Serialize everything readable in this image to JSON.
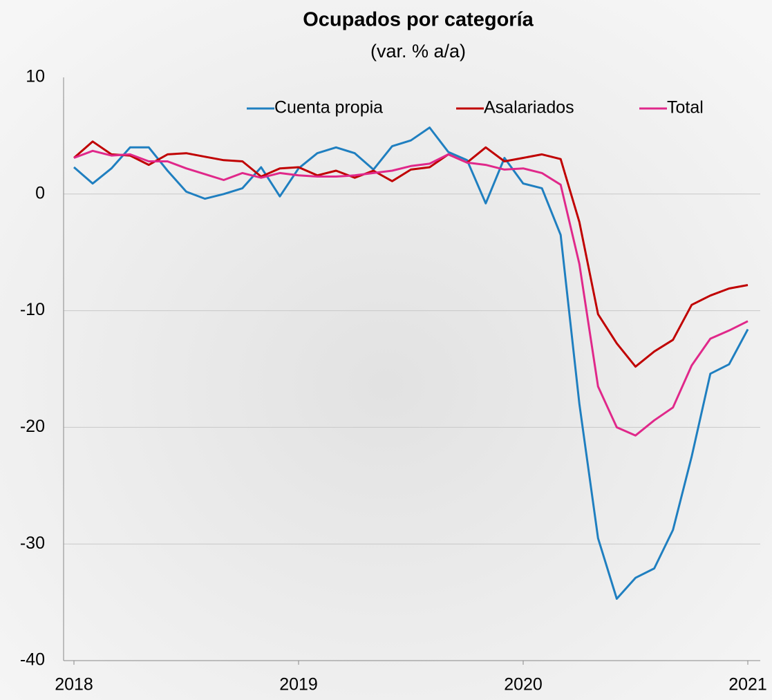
{
  "chart_data": {
    "type": "line",
    "title": "Ocupados por categoría",
    "subtitle": "(var. % a/a)",
    "x": [
      2018,
      2018.0833,
      2018.1667,
      2018.25,
      2018.3333,
      2018.4167,
      2018.5,
      2018.5833,
      2018.6667,
      2018.75,
      2018.8333,
      2018.9167,
      2019,
      2019.0833,
      2019.1667,
      2019.25,
      2019.3333,
      2019.4167,
      2019.5,
      2019.5833,
      2019.6667,
      2019.75,
      2019.8333,
      2019.9167,
      2020,
      2020.0833,
      2020.1667,
      2020.25,
      2020.3333,
      2020.4167,
      2020.5,
      2020.5833,
      2020.6667,
      2020.75,
      2020.8333,
      2020.9167,
      2021
    ],
    "series": [
      {
        "name": "Cuenta propia",
        "color": "#1f7fc0",
        "values": [
          2.3,
          0.9,
          2.2,
          4.0,
          4.0,
          2.0,
          0.2,
          -0.4,
          0.0,
          0.5,
          2.3,
          -0.2,
          2.2,
          3.5,
          4.0,
          3.5,
          2.1,
          4.1,
          4.6,
          5.7,
          3.6,
          2.9,
          -0.8,
          3.1,
          0.9,
          0.5,
          -3.5,
          -18.0,
          -29.5,
          -34.7,
          -32.9,
          -32.1,
          -28.8,
          -22.5,
          -15.4,
          -14.6,
          -11.6
        ]
      },
      {
        "name": "Asalariados",
        "color": "#c00000",
        "values": [
          3.1,
          4.5,
          3.4,
          3.3,
          2.5,
          3.4,
          3.5,
          3.2,
          2.9,
          2.8,
          1.5,
          2.2,
          2.3,
          1.6,
          2.0,
          1.4,
          2.0,
          1.1,
          2.1,
          2.3,
          3.4,
          2.7,
          4.0,
          2.8,
          3.1,
          3.4,
          3.0,
          -2.4,
          -10.3,
          -12.8,
          -14.8,
          -13.5,
          -12.5,
          -9.5,
          -8.7,
          -8.1,
          -7.8
        ]
      },
      {
        "name": "Total",
        "color": "#e0288a",
        "values": [
          3.1,
          3.7,
          3.3,
          3.4,
          2.8,
          2.8,
          2.2,
          1.7,
          1.2,
          1.8,
          1.4,
          1.8,
          1.6,
          1.5,
          1.5,
          1.6,
          1.8,
          2.0,
          2.4,
          2.6,
          3.4,
          2.7,
          2.5,
          2.1,
          2.2,
          1.8,
          0.8,
          -6.0,
          -16.5,
          -20.0,
          -20.7,
          -19.4,
          -18.3,
          -14.7,
          -12.4,
          -11.7,
          -10.9
        ]
      }
    ],
    "xlim": [
      2018,
      2021
    ],
    "xticks": [
      2018,
      2019,
      2020,
      2021
    ],
    "ylim": [
      -40,
      10
    ],
    "yticks": [
      -40,
      -30,
      -20,
      -10,
      0,
      10
    ],
    "grid": true,
    "legend": "top"
  }
}
